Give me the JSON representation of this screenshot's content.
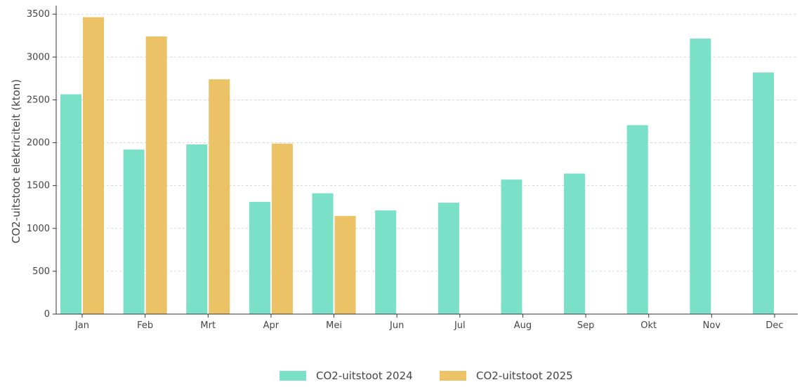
{
  "chart_data": {
    "type": "bar",
    "categories": [
      "Jan",
      "Feb",
      "Mrt",
      "Apr",
      "Mei",
      "Jun",
      "Jul",
      "Aug",
      "Sep",
      "Okt",
      "Nov",
      "Dec"
    ],
    "series": [
      {
        "name": "CO2-uitstoot 2024",
        "color": "#7ae0c8",
        "values": [
          2565,
          1920,
          1980,
          1310,
          1410,
          1210,
          1300,
          1570,
          1640,
          2205,
          3215,
          2820
        ]
      },
      {
        "name": "CO2-uitstoot 2025",
        "color": "#ebc266",
        "values": [
          3465,
          3240,
          2740,
          1990,
          1145,
          null,
          null,
          null,
          null,
          null,
          null,
          null
        ]
      }
    ],
    "ylabel": "CO2-uitstoot elektriciteit (kton)",
    "ylim": [
      0,
      3600
    ],
    "yticks": [
      0,
      500,
      1000,
      1500,
      2000,
      2500,
      3000,
      3500
    ],
    "grid": "horizontal-dashed",
    "legend_position": "bottom-center"
  }
}
